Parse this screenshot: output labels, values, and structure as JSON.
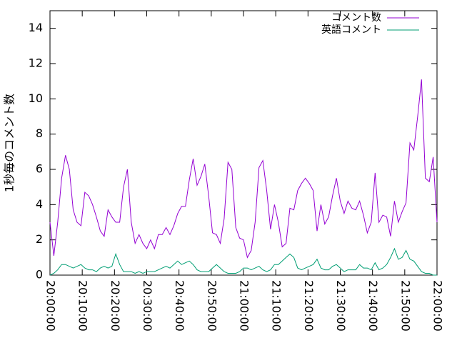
{
  "chart_data": {
    "type": "line",
    "y_label": "1秒毎のコメント数",
    "x": [
      "20:00:00",
      "20:01:12",
      "20:02:24",
      "20:03:36",
      "20:04:48",
      "20:06:00",
      "20:07:12",
      "20:08:24",
      "20:09:36",
      "20:10:48",
      "20:12:00",
      "20:13:12",
      "20:14:24",
      "20:15:36",
      "20:16:48",
      "20:18:00",
      "20:19:12",
      "20:20:24",
      "20:21:36",
      "20:22:48",
      "20:24:00",
      "20:25:12",
      "20:26:24",
      "20:27:36",
      "20:28:48",
      "20:30:00",
      "20:31:12",
      "20:32:24",
      "20:33:36",
      "20:34:48",
      "20:36:00",
      "20:37:12",
      "20:38:24",
      "20:39:36",
      "20:40:48",
      "20:42:00",
      "20:43:12",
      "20:44:24",
      "20:45:36",
      "20:46:48",
      "20:48:00",
      "20:49:12",
      "20:50:24",
      "20:51:36",
      "20:52:48",
      "20:54:00",
      "20:55:12",
      "20:56:24",
      "20:57:36",
      "20:58:48",
      "21:00:00",
      "21:01:12",
      "21:02:24",
      "21:03:36",
      "21:04:48",
      "21:06:00",
      "21:07:12",
      "21:08:24",
      "21:09:36",
      "21:10:48",
      "21:12:00",
      "21:13:12",
      "21:14:24",
      "21:15:36",
      "21:16:48",
      "21:18:00",
      "21:19:12",
      "21:20:24",
      "21:21:36",
      "21:22:48",
      "21:24:00",
      "21:25:12",
      "21:26:24",
      "21:27:36",
      "21:28:48",
      "21:30:00",
      "21:31:12",
      "21:32:24",
      "21:33:36",
      "21:34:48",
      "21:36:00",
      "21:37:12",
      "21:38:24",
      "21:39:36",
      "21:40:48",
      "21:42:00",
      "21:43:12",
      "21:44:24",
      "21:45:36",
      "21:46:48",
      "21:48:00",
      "21:49:12",
      "21:50:24",
      "21:51:36",
      "21:52:48",
      "21:54:00",
      "21:55:12",
      "21:56:24",
      "21:57:36",
      "21:58:48",
      "22:00:00"
    ],
    "series": [
      {
        "name": "コメント数",
        "color": "#9400d3",
        "values": [
          3.0,
          1.1,
          3.0,
          5.5,
          6.8,
          6.0,
          3.7,
          3.0,
          2.8,
          4.7,
          4.5,
          4.0,
          3.3,
          2.5,
          2.2,
          3.7,
          3.3,
          3.0,
          3.0,
          5.0,
          6.0,
          3.0,
          1.8,
          2.3,
          1.8,
          1.5,
          2.0,
          1.5,
          2.3,
          2.3,
          2.7,
          2.3,
          2.8,
          3.5,
          3.9,
          3.9,
          5.4,
          6.6,
          5.1,
          5.6,
          6.3,
          4.5,
          2.4,
          2.3,
          1.8,
          3.2,
          6.4,
          6.0,
          2.7,
          2.1,
          2.0,
          1.0,
          1.4,
          3.0,
          6.1,
          6.5,
          4.8,
          2.6,
          4.0,
          3.0,
          1.6,
          1.8,
          3.8,
          3.7,
          4.8,
          5.2,
          5.5,
          5.2,
          4.8,
          2.5,
          4.0,
          2.9,
          3.3,
          4.5,
          5.5,
          4.2,
          3.5,
          4.2,
          3.8,
          3.7,
          4.2,
          3.4,
          2.4,
          3.0,
          5.8,
          3.0,
          3.4,
          3.3,
          2.2,
          4.2,
          3.0,
          3.6,
          4.1,
          7.5,
          7.1,
          9.0,
          11.1,
          5.5,
          5.3,
          6.7,
          3.0
        ]
      },
      {
        "name": "英語コメント",
        "color": "#009e73",
        "values": [
          0,
          0.1,
          0.3,
          0.6,
          0.6,
          0.5,
          0.4,
          0.5,
          0.6,
          0.4,
          0.3,
          0.3,
          0.2,
          0.4,
          0.5,
          0.4,
          0.5,
          1.2,
          0.6,
          0.2,
          0.2,
          0.2,
          0.1,
          0.2,
          0.1,
          0.2,
          0.2,
          0.2,
          0.3,
          0.4,
          0.5,
          0.4,
          0.6,
          0.8,
          0.6,
          0.7,
          0.8,
          0.6,
          0.3,
          0.2,
          0.2,
          0.2,
          0.4,
          0.6,
          0.4,
          0.2,
          0.1,
          0.1,
          0.1,
          0.2,
          0.4,
          0.4,
          0.3,
          0.4,
          0.5,
          0.3,
          0.2,
          0.3,
          0.6,
          0.6,
          0.8,
          1.0,
          1.2,
          1.0,
          0.4,
          0.3,
          0.4,
          0.5,
          0.6,
          0.9,
          0.4,
          0.3,
          0.3,
          0.5,
          0.6,
          0.4,
          0.2,
          0.3,
          0.3,
          0.3,
          0.6,
          0.4,
          0.4,
          0.3,
          0.7,
          0.3,
          0.4,
          0.6,
          1.0,
          1.5,
          0.9,
          1.0,
          1.4,
          0.9,
          0.8,
          0.5,
          0.2,
          0.1,
          0.1,
          0,
          0
        ]
      }
    ],
    "xlim": [
      "20:00:00",
      "22:00:00"
    ],
    "xticks": [
      "20:00:00",
      "20:10:00",
      "20:20:00",
      "20:30:00",
      "20:40:00",
      "20:50:00",
      "21:00:00",
      "21:10:00",
      "21:20:00",
      "21:30:00",
      "21:40:00",
      "21:50:00",
      "22:00:00"
    ],
    "ylim": [
      0,
      15
    ],
    "yticks": [
      0,
      2,
      4,
      6,
      8,
      10,
      12,
      14
    ],
    "legend": "top right"
  }
}
